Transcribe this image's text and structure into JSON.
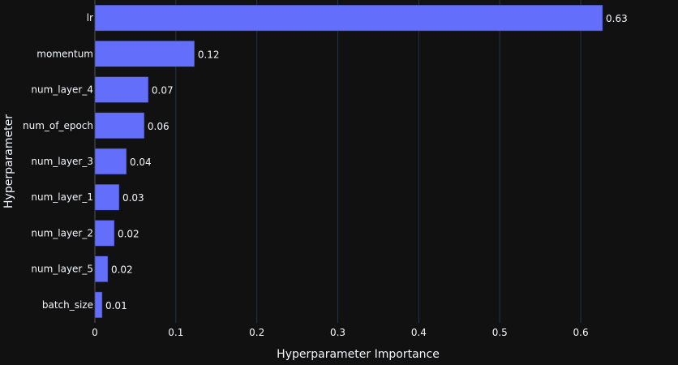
{
  "chart_data": {
    "type": "bar",
    "orientation": "horizontal",
    "title": "",
    "xlabel": "Hyperparameter Importance",
    "ylabel": "Hyperparameter",
    "categories": [
      "lr",
      "momentum",
      "num_layer_4",
      "num_of_epoch",
      "num_layer_3",
      "num_layer_1",
      "num_layer_2",
      "num_layer_5",
      "batch_size"
    ],
    "values": [
      0.627,
      0.123,
      0.066,
      0.061,
      0.039,
      0.03,
      0.024,
      0.016,
      0.009
    ],
    "data_labels": [
      "0.63",
      "0.12",
      "0.07",
      "0.06",
      "0.04",
      "0.03",
      "0.02",
      "0.02",
      "0.01"
    ],
    "xlim": [
      0,
      0.66
    ],
    "xticks": [
      0,
      0.1,
      0.2,
      0.3,
      0.4,
      0.5,
      0.6
    ],
    "xtick_labels": [
      "0",
      "0.1",
      "0.2",
      "0.3",
      "0.4",
      "0.5",
      "0.6"
    ],
    "grid": true,
    "legend": "none",
    "colors": {
      "background": "#111111",
      "bar": "#636efa",
      "grid": "#283442",
      "text": "#f2f5fa"
    }
  }
}
